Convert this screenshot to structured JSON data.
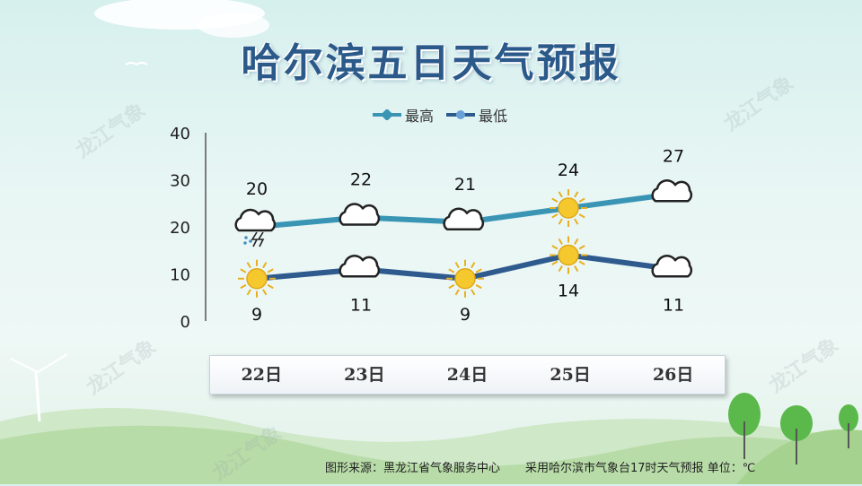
{
  "title": "哈尔滨五日天气预报",
  "legend": {
    "high": "最高",
    "low": "最低"
  },
  "watermark": "龙江气象",
  "footer": {
    "source": "图形来源：黑龙江省气象服务中心",
    "note": "采用哈尔滨市气象台17时天气预报 单位：℃"
  },
  "colors": {
    "high": "#3a95b5",
    "low": "#2e5a8e",
    "title": "#2b5a8a"
  },
  "chart_data": {
    "type": "line",
    "categories": [
      "22日",
      "23日",
      "24日",
      "25日",
      "26日"
    ],
    "series": [
      {
        "name": "最高",
        "values": [
          20,
          22,
          21,
          24,
          27
        ],
        "icons": [
          "thunderstorm-icon",
          "cloud-icon",
          "cloud-icon",
          "sun-icon",
          "cloud-icon"
        ]
      },
      {
        "name": "最低",
        "values": [
          9,
          11,
          9,
          14,
          11
        ],
        "icons": [
          "sun-icon",
          "cloud-icon",
          "sun-icon",
          "sun-icon",
          "cloud-icon"
        ]
      }
    ],
    "yticks": [
      0,
      10,
      20,
      30,
      40
    ],
    "ylim": [
      0,
      40
    ],
    "grid": false,
    "legend_position": "top"
  }
}
